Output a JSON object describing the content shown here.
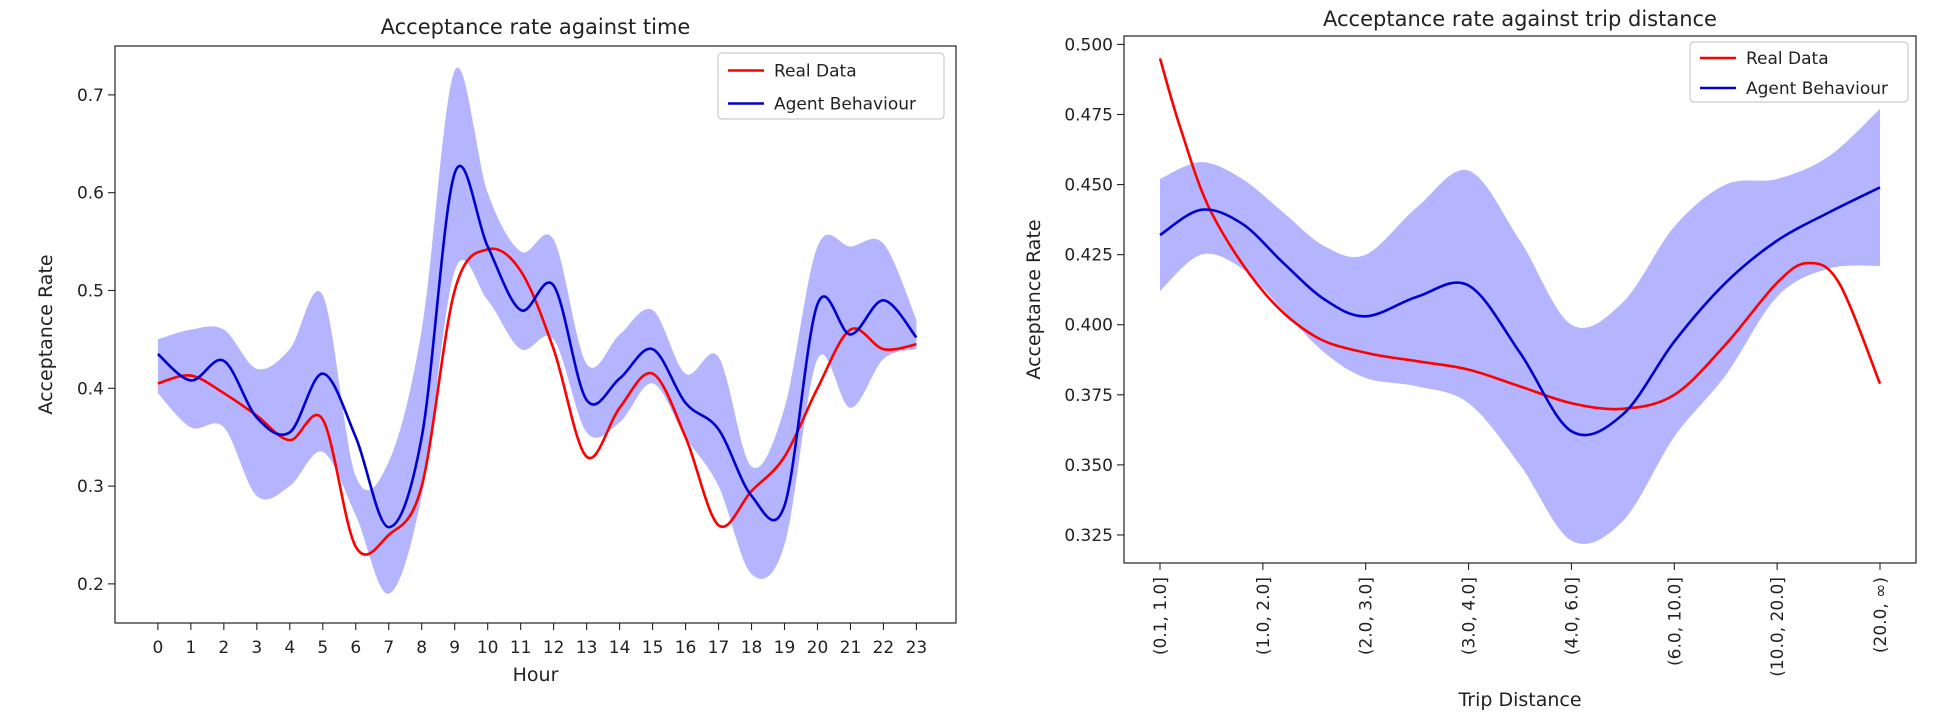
{
  "chart_data": [
    {
      "type": "line",
      "title": "Acceptance rate against time",
      "xlabel": "Hour",
      "ylabel": "Acceptance Rate",
      "xlim": [
        -1.3,
        24.2
      ],
      "ylim": [
        0.16,
        0.75
      ],
      "x": [
        0,
        1,
        2,
        3,
        4,
        5,
        6,
        7,
        8,
        9,
        10,
        11,
        12,
        13,
        14,
        15,
        16,
        17,
        18,
        19,
        20,
        21,
        22,
        23
      ],
      "x_tick_labels": [
        "0",
        "1",
        "2",
        "3",
        "4",
        "5",
        "6",
        "7",
        "8",
        "9",
        "10",
        "11",
        "12",
        "13",
        "14",
        "15",
        "16",
        "17",
        "18",
        "19",
        "20",
        "21",
        "22",
        "23"
      ],
      "y_ticks": [
        0.2,
        0.3,
        0.4,
        0.5,
        0.6,
        0.7
      ],
      "y_tick_labels": [
        "0.2",
        "0.3",
        "0.4",
        "0.5",
        "0.6",
        "0.7"
      ],
      "legend_position": "upper right",
      "series": [
        {
          "name": "Real Data",
          "color": "#ff0000",
          "values": [
            0.405,
            0.413,
            0.395,
            0.372,
            0.347,
            0.368,
            0.238,
            0.25,
            0.3,
            0.5,
            0.542,
            0.52,
            0.44,
            0.33,
            0.38,
            0.415,
            0.35,
            0.26,
            0.295,
            0.33,
            0.4,
            0.46,
            0.44,
            0.445
          ]
        },
        {
          "name": "Agent Behaviour",
          "color": "#0000cc",
          "band_color": "#9999ff",
          "values": [
            0.435,
            0.408,
            0.428,
            0.37,
            0.355,
            0.415,
            0.35,
            0.258,
            0.35,
            0.62,
            0.545,
            0.48,
            0.505,
            0.388,
            0.41,
            0.44,
            0.385,
            0.358,
            0.29,
            0.28,
            0.486,
            0.455,
            0.49,
            0.452
          ],
          "band_upper": [
            0.45,
            0.46,
            0.46,
            0.42,
            0.44,
            0.495,
            0.31,
            0.325,
            0.46,
            0.725,
            0.6,
            0.54,
            0.552,
            0.425,
            0.455,
            0.48,
            0.415,
            0.432,
            0.32,
            0.38,
            0.545,
            0.545,
            0.548,
            0.47
          ],
          "band_lower": [
            0.395,
            0.36,
            0.36,
            0.29,
            0.3,
            0.335,
            0.27,
            0.19,
            0.29,
            0.52,
            0.49,
            0.44,
            0.45,
            0.355,
            0.365,
            0.405,
            0.35,
            0.3,
            0.21,
            0.24,
            0.43,
            0.38,
            0.43,
            0.44
          ]
        }
      ]
    },
    {
      "type": "line",
      "title": "Acceptance rate against trip distance",
      "xlabel": "Trip Distance",
      "ylabel": "Acceptance Rate",
      "xlim": [
        -0.35,
        7.35
      ],
      "ylim": [
        0.315,
        0.503
      ],
      "categories": [
        "(0.1, 1.0]",
        "(1.0, 2.0]",
        "(2.0, 3.0]",
        "(3.0, 4.0]",
        "(4.0, 6.0]",
        "(6.0, 10.0]",
        "(10.0, 20.0]",
        "(20.0, ∞)"
      ],
      "y_ticks": [
        0.325,
        0.35,
        0.375,
        0.4,
        0.425,
        0.45,
        0.475,
        0.5
      ],
      "y_tick_labels": [
        "0.325",
        "0.350",
        "0.375",
        "0.400",
        "0.425",
        "0.450",
        "0.475",
        "0.500"
      ],
      "legend_position": "upper right",
      "series": [
        {
          "name": "Real Data",
          "color": "#ff0000",
          "x": [
            0,
            0.2,
            0.5,
            1.0,
            1.5,
            2.0,
            2.5,
            3.0,
            3.5,
            4.0,
            4.5,
            5.0,
            5.5,
            6.0,
            6.3,
            6.6,
            7.0
          ],
          "values": [
            0.495,
            0.47,
            0.44,
            0.412,
            0.396,
            0.39,
            0.387,
            0.384,
            0.378,
            0.372,
            0.37,
            0.375,
            0.393,
            0.415,
            0.422,
            0.415,
            0.379
          ]
        },
        {
          "name": "Agent Behaviour",
          "color": "#0000cc",
          "band_color": "#9999ff",
          "x": [
            0,
            0.4,
            0.8,
            1.2,
            1.6,
            2.0,
            2.5,
            3.0,
            3.5,
            4.0,
            4.5,
            5.0,
            5.5,
            6.0,
            6.5,
            7.0
          ],
          "values": [
            0.432,
            0.441,
            0.436,
            0.422,
            0.409,
            0.403,
            0.41,
            0.414,
            0.39,
            0.362,
            0.368,
            0.394,
            0.415,
            0.43,
            0.44,
            0.449
          ],
          "band_upper": [
            0.452,
            0.458,
            0.452,
            0.44,
            0.428,
            0.425,
            0.442,
            0.455,
            0.43,
            0.4,
            0.408,
            0.435,
            0.45,
            0.452,
            0.46,
            0.477
          ],
          "band_lower": [
            0.412,
            0.425,
            0.42,
            0.405,
            0.39,
            0.381,
            0.378,
            0.372,
            0.35,
            0.323,
            0.33,
            0.36,
            0.382,
            0.41,
            0.42,
            0.421
          ]
        }
      ]
    }
  ]
}
